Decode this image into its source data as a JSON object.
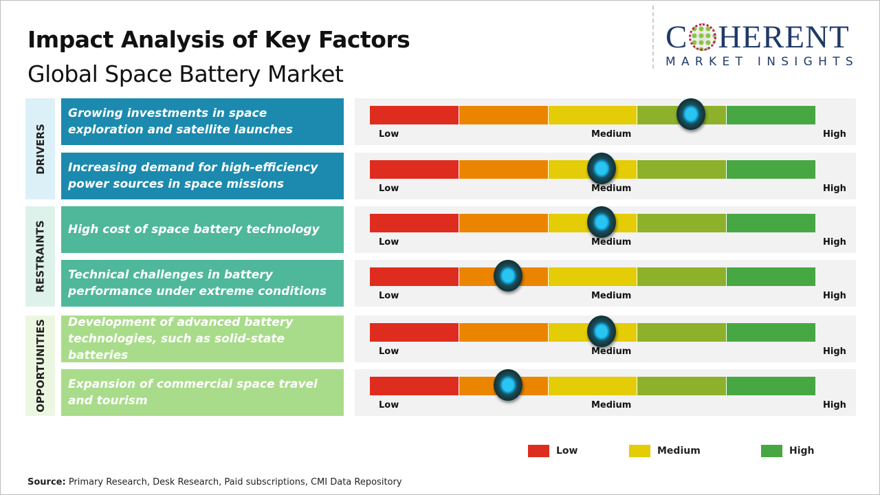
{
  "title": "Impact Analysis of Key Factors",
  "subtitle": "Global Space Battery Market",
  "logo": {
    "main_left": "C",
    "main_right": "HERENT",
    "sub": "MARKET INSIGHTS"
  },
  "scale_labels": {
    "low": "Low",
    "medium": "Medium",
    "high": "High"
  },
  "segment_colors": [
    "#de2c1e",
    "#eb8500",
    "#e4cc06",
    "#8db12a",
    "#47a843"
  ],
  "categories": [
    {
      "label": "DRIVERS",
      "bg": "#dcf0f8",
      "factor_color": "#1b8aae"
    },
    {
      "label": "RESTRAINTS",
      "bg": "#def2ec",
      "factor_color": "#4fb79a"
    },
    {
      "label": "OPPORTUNITIES",
      "bg": "#ecf7e2",
      "factor_color": "#a9dc8a"
    }
  ],
  "factors": [
    {
      "category": 0,
      "text": "Growing investments in space exploration and satellite launches",
      "impact": 0.72
    },
    {
      "category": 0,
      "text": "Increasing demand for high-efficiency power sources in space missions",
      "impact": 0.52
    },
    {
      "category": 1,
      "text": "High cost of space battery technology",
      "impact": 0.52
    },
    {
      "category": 1,
      "text": "Technical challenges in battery performance under extreme conditions",
      "impact": 0.31
    },
    {
      "category": 2,
      "text": "Development of advanced battery technologies, such as solid-state batteries",
      "impact": 0.52
    },
    {
      "category": 2,
      "text": "Expansion of commercial space travel and tourism",
      "impact": 0.31
    }
  ],
  "legend": [
    {
      "label": "Low",
      "color": "#de2c1e"
    },
    {
      "label": "Medium",
      "color": "#e4cc06"
    },
    {
      "label": "High",
      "color": "#47a843"
    }
  ],
  "source": {
    "label": "Source:",
    "text": " Primary Research, Desk Research, Paid subscriptions, CMI Data Repository"
  }
}
